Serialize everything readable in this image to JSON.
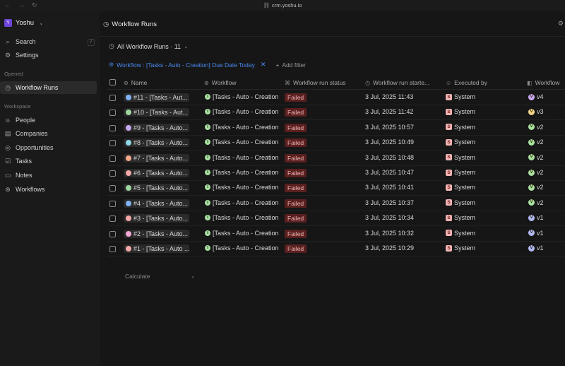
{
  "browser": {
    "url": "crm.yoshu.io"
  },
  "workspace": {
    "name": "Yoshu",
    "logo_letter": "Y"
  },
  "sidebar": {
    "search_label": "Search",
    "settings_label": "Settings",
    "search_shortcut": "/",
    "opened_section": "Opened",
    "opened_items": [
      {
        "label": "Workflow Runs",
        "icon": "history-icon"
      }
    ],
    "workspace_section": "Workspace",
    "workspace_items": [
      {
        "label": "People",
        "icon": "person-icon"
      },
      {
        "label": "Companies",
        "icon": "building-icon"
      },
      {
        "label": "Opportunities",
        "icon": "target-icon"
      },
      {
        "label": "Tasks",
        "icon": "checkbox-icon"
      },
      {
        "label": "Notes",
        "icon": "note-icon"
      },
      {
        "label": "Workflows",
        "icon": "workflow-icon"
      }
    ]
  },
  "header": {
    "title": "Workflow Runs"
  },
  "view": {
    "label": "All Workflow Runs · 11"
  },
  "filter": {
    "chip_label": "Workflow : [Tasks - Auto - Creation] Due Date Today",
    "add_filter_label": "Add filter"
  },
  "table": {
    "columns": [
      "Name",
      "Workflow",
      "Workflow run status",
      "Workflow run starte...",
      "Executed by",
      "Workflow"
    ],
    "rows": [
      {
        "name": "#11 - [Tasks - Aut...",
        "workflow": "[Tasks - Auto - Creation",
        "status": "Failed",
        "started": "3 Jul, 2025 11:43",
        "executed_by": "System",
        "version": "v4",
        "dot_color": "#7fb3f5",
        "version_color": "#c8a8f5"
      },
      {
        "name": "#10 - [Tasks - Aut...",
        "workflow": "[Tasks - Auto - Creation",
        "status": "Failed",
        "started": "3 Jul, 2025 11:42",
        "executed_by": "System",
        "version": "v3",
        "dot_color": "#9ed8a0",
        "version_color": "#f5d58a"
      },
      {
        "name": "#9 - [Tasks - Auto...",
        "workflow": "[Tasks - Auto - Creation",
        "status": "Failed",
        "started": "3 Jul, 2025 10:57",
        "executed_by": "System",
        "version": "v2",
        "dot_color": "#c5a8f0",
        "version_color": "#a8e0a0"
      },
      {
        "name": "#8 - [Tasks - Auto...",
        "workflow": "[Tasks - Auto - Creation",
        "status": "Failed",
        "started": "3 Jul, 2025 10:49",
        "executed_by": "System",
        "version": "v2",
        "dot_color": "#8fd6e8",
        "version_color": "#a8e0a0"
      },
      {
        "name": "#7 - [Tasks - Auto...",
        "workflow": "[Tasks - Auto - Creation",
        "status": "Failed",
        "started": "3 Jul, 2025 10:48",
        "executed_by": "System",
        "version": "v2",
        "dot_color": "#f5a88a",
        "version_color": "#a8e0a0"
      },
      {
        "name": "#6 - [Tasks - Auto...",
        "workflow": "[Tasks - Auto - Creation",
        "status": "Failed",
        "started": "3 Jul, 2025 10:47",
        "executed_by": "System",
        "version": "v2",
        "dot_color": "#f5a8a8",
        "version_color": "#a8e0a0"
      },
      {
        "name": "#5 - [Tasks - Auto...",
        "workflow": "[Tasks - Auto - Creation",
        "status": "Failed",
        "started": "3 Jul, 2025 10:41",
        "executed_by": "System",
        "version": "v2",
        "dot_color": "#9ed8a0",
        "version_color": "#a8e0a0"
      },
      {
        "name": "#4 - [Tasks - Auto...",
        "workflow": "[Tasks - Auto - Creation",
        "status": "Failed",
        "started": "3 Jul, 2025 10:37",
        "executed_by": "System",
        "version": "v2",
        "dot_color": "#7fb3f5",
        "version_color": "#a8e0a0"
      },
      {
        "name": "#3 - [Tasks - Auto...",
        "workflow": "[Tasks - Auto - Creation",
        "status": "Failed",
        "started": "3 Jul, 2025 10:34",
        "executed_by": "System",
        "version": "v1",
        "dot_color": "#f5a8a8",
        "version_color": "#b0b8f5"
      },
      {
        "name": "#2 - [Tasks - Auto...",
        "workflow": "[Tasks - Auto - Creation",
        "status": "Failed",
        "started": "3 Jul, 2025 10:32",
        "executed_by": "System",
        "version": "v1",
        "dot_color": "#f5a8d8",
        "version_color": "#b0b8f5"
      },
      {
        "name": "#1 - [Tasks - Auto ...",
        "workflow": "[Tasks - Auto - Creation",
        "status": "Failed",
        "started": "3 Jul, 2025 10:29",
        "executed_by": "System",
        "version": "v1",
        "dot_color": "#f5a8a8",
        "version_color": "#b0b8f5"
      }
    ],
    "executed_letter": "S",
    "workflow_letter": "I",
    "calculate_label": "Calculate"
  }
}
